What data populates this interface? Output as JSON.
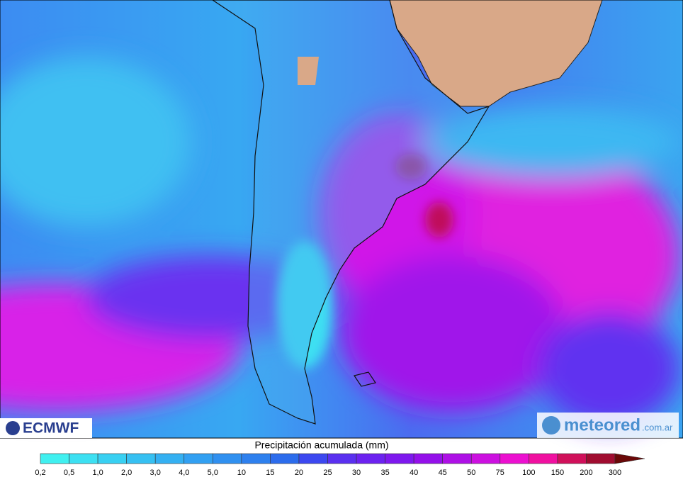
{
  "logos": {
    "ecmwf": "ECMWF",
    "meteored": "meteored",
    "meteored_domain": ".com.ar"
  },
  "legend": {
    "title": "Precipitación acumulada (mm)",
    "labels": [
      "0,2",
      "0,5",
      "1,0",
      "2,0",
      "3,0",
      "4,0",
      "5,0",
      "10",
      "15",
      "20",
      "25",
      "30",
      "35",
      "40",
      "45",
      "50",
      "75",
      "100",
      "150",
      "200",
      "300"
    ],
    "colors": [
      "#40f0f0",
      "#3ce0f2",
      "#38d0f2",
      "#36c0f2",
      "#34b0f2",
      "#32a0f2",
      "#3090f0",
      "#2e80ee",
      "#2c6cec",
      "#3c48f0",
      "#5a30f0",
      "#6c22f0",
      "#7e18ee",
      "#9410ea",
      "#ae10e6",
      "#cc10e0",
      "#ec10d0",
      "#f010a0",
      "#d0105a",
      "#a00c30"
    ],
    "extend_color": "#6a0808"
  }
}
